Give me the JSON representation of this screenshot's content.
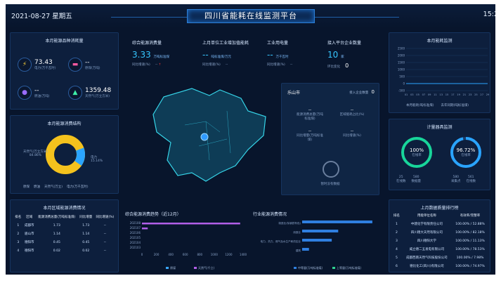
{
  "header": {
    "date": "2021-08-27 星期五",
    "title": "四川省能耗在线监测平台",
    "clock": "15:2"
  },
  "energy": {
    "title": "本月能源品种消耗量",
    "items": [
      {
        "icon": "lightning-icon",
        "value": "73.43",
        "label": "电力(万千瓦时)"
      },
      {
        "icon": "car-icon",
        "value": "--",
        "label": "原煤(万吨)"
      },
      {
        "icon": "drop-icon",
        "value": "--",
        "label": "燃油(万吨)"
      },
      {
        "icon": "flame-icon",
        "value": "1359.48",
        "label": "天然气(万立方米)"
      }
    ]
  },
  "structure": {
    "title": "本月能源消费结构",
    "left_label": [
      "天然气(万立方米)",
      "84.86%"
    ],
    "right_label": [
      "电力",
      "15.14%"
    ],
    "legend": [
      "原煤",
      "燃油",
      "天然气(万立)",
      "电力(万千瓦时)"
    ]
  },
  "area": {
    "title": "本月区域能源消费情况",
    "headers": [
      "排名",
      "区域",
      "能源消费总量(万吨标准煤)",
      "同比增量",
      "同比增速(%)"
    ],
    "rows": [
      [
        "1",
        "成都市",
        "1.73",
        "1.73",
        "--"
      ],
      [
        "2",
        "眉山市",
        "1.14",
        "1.14",
        "--"
      ],
      [
        "3",
        "德阳市",
        "0.45",
        "0.45",
        "--"
      ],
      [
        "4",
        "德阳市",
        "0.02",
        "0.02",
        "--"
      ]
    ]
  },
  "kpis": [
    {
      "label": "综合能源消费量",
      "value": "3.33",
      "unit": "万吨标准煤",
      "sub": "同比增速(%)",
      "sub_val": "--"
    },
    {
      "label": "上月单位工业增加值能耗",
      "value": "--",
      "unit": "吨标准煤/万元",
      "sub": "同比增速(%)",
      "sub_val": "--"
    },
    {
      "label": "工业用电量",
      "value": "--",
      "unit": "万千瓦时",
      "sub": "同比增速(%)",
      "sub_val": "--"
    },
    {
      "label": "接入平台企业数量",
      "value": "10",
      "unit": "家",
      "sub": "环比变化",
      "sub_val": "0"
    }
  ],
  "city": {
    "name": "乐山市",
    "count_label": "接入企业数量",
    "count": "0",
    "cells": [
      {
        "value": "--",
        "label": "能源消费总量(万吨标准煤)"
      },
      {
        "value": "--",
        "label": "区域能耗占比(%)"
      },
      {
        "value": "--",
        "label": "同比增量(万吨标准煤)"
      },
      {
        "value": "--",
        "label": "同比增速(%)"
      }
    ],
    "empty": "暂时没有数据"
  },
  "trend": {
    "title": "综合能源消费趋势（近12月）",
    "chart_data": {
      "type": "bar",
      "orientation": "horizontal",
      "categories": [
        "202108",
        "202107",
        "202106",
        "202105",
        "202104",
        "202103"
      ],
      "series": [
        {
          "name": "原煤",
          "color": "#3aa7ff",
          "values": [
            0,
            0,
            0,
            0,
            0,
            0
          ]
        },
        {
          "name": "天然气(千立)",
          "color": "#b25fe8",
          "values": [
            1359,
            80,
            0,
            0,
            0,
            0
          ]
        }
      ],
      "xlim": [
        0,
        1400
      ],
      "xticks": [
        "0",
        "200",
        "400",
        "600",
        "800",
        "1000",
        "1200",
        "1400"
      ]
    }
  },
  "industry": {
    "title": "行业能源消费情况",
    "chart_data": {
      "type": "bar",
      "orientation": "horizontal",
      "categories": [
        "制造业(除钢铁有色)",
        "用造业",
        "电力、热力、燃气及水生产和供应业",
        "建筑"
      ],
      "series": [
        {
          "name": "中等量(万吨标准煤)",
          "color": "#2f7fe0",
          "values": [
            1.85,
            0.95,
            0.78,
            0.18
          ]
        },
        {
          "name": "上等量(万吨标准煤)",
          "color": "#2fd18f",
          "values": [
            0,
            0,
            0,
            0
          ]
        }
      ],
      "xlim": [
        0,
        2
      ]
    }
  },
  "monthly": {
    "title": "本月能耗监测",
    "legend": [
      "本月能耗(吨标准煤)",
      "去年同期(吨标准煤)"
    ],
    "chart_data": {
      "type": "line",
      "yticks": [
        "2500",
        "2000",
        "1500",
        "1000",
        "500",
        "0",
        "-500"
      ],
      "x": [
        "01",
        "03",
        "05",
        "07",
        "09",
        "11",
        "13",
        "15",
        "17",
        "19",
        "21",
        "23",
        "25",
        "27",
        "29"
      ]
    }
  },
  "metering": {
    "title": "计量器具监测",
    "gauges": [
      {
        "value": "100%",
        "label": "在线率",
        "color": "#18d59a",
        "pct": 100,
        "a": "25",
        "a_label": "在线数",
        "b": "580",
        "b_label": "数据量"
      },
      {
        "value": "96.72%",
        "label": "在线率",
        "color": "#2aa4ff",
        "pct": 96.72,
        "a": "580",
        "a_label": "采集点",
        "b": "561",
        "b_label": "在线数"
      }
    ]
  },
  "ranking": {
    "title": "上月数据质量排行榜",
    "headers": [
      "排名",
      "用能单位名称",
      "有效率/完整率"
    ],
    "rows": [
      [
        "1",
        "中建化学有限责任公司",
        "100.00% / 52.88%"
      ],
      [
        "2",
        "四川德大天然有限公司",
        "100.00% / 82.18%"
      ],
      [
        "3",
        "四川德阳大学",
        "100.00% / 11.13%"
      ],
      [
        "4",
        "威立德二五发电有限公司",
        "100.00% / 78.53%"
      ],
      [
        "5",
        "成都西南天然气科技股份公司",
        "100.00% / 7.98%"
      ],
      [
        "6",
        "德比化工(四川)有限公司",
        "100.00% / 74.97%"
      ]
    ]
  }
}
